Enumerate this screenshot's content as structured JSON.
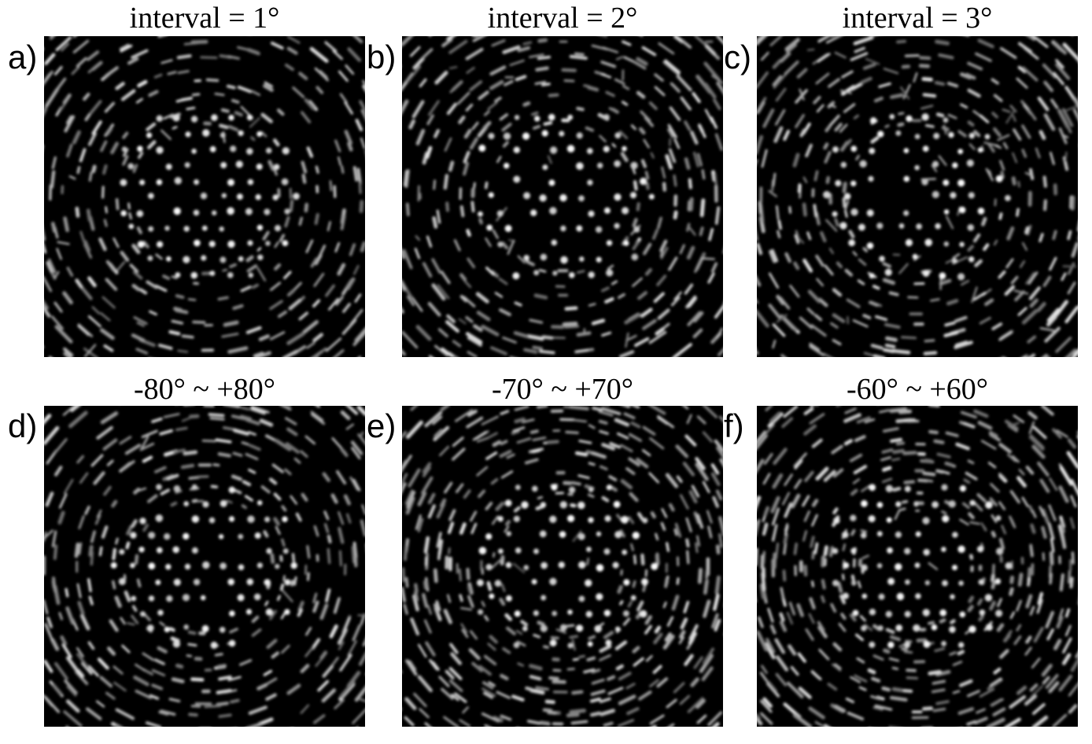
{
  "figure": {
    "panels": [
      {
        "id": "a",
        "letter": "a)",
        "title": "interval = 1°"
      },
      {
        "id": "b",
        "letter": "b)",
        "title": "interval = 2°"
      },
      {
        "id": "c",
        "letter": "c)",
        "title": "interval = 3°"
      },
      {
        "id": "d",
        "letter": "d)",
        "title": "-80° ~ +80°"
      },
      {
        "id": "e",
        "letter": "e)",
        "title": "-70° ~ +70°"
      },
      {
        "id": "f",
        "letter": "f)",
        "title": "-60° ~ +60°"
      }
    ]
  }
}
